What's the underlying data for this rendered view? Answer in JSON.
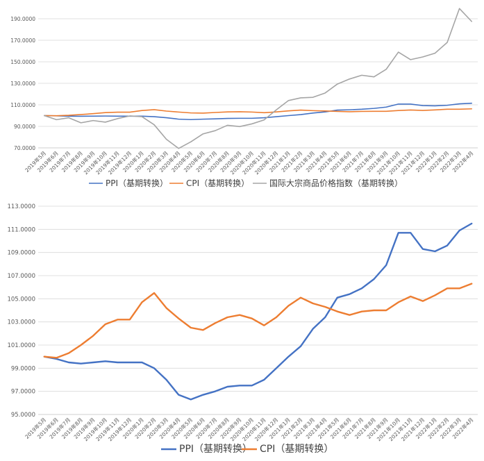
{
  "colors": {
    "ppi": "#4472C4",
    "cpi": "#ED7D31",
    "commodity": "#A5A5A5",
    "grid": "#D9D9D9",
    "text": "#595959"
  },
  "categories": [
    "2019年5月",
    "2019年6月",
    "2019年7月",
    "2019年8月",
    "2019年9月",
    "2019年10月",
    "2019年11月",
    "2019年12月",
    "2020年1月",
    "2020年2月",
    "2020年3月",
    "2020年4月",
    "2020年5月",
    "2020年6月",
    "2020年7月",
    "2020年8月",
    "2020年9月",
    "2020年10月",
    "2020年11月",
    "2020年12月",
    "2021年1月",
    "2021年2月",
    "2021年3月",
    "2021年4月",
    "2021年5月",
    "2021年6月",
    "2021年7月",
    "2021年8月",
    "2021年9月",
    "2021年10月",
    "2021年11月",
    "2021年12月",
    "2022年1月",
    "2022年2月",
    "2022年3月",
    "2022年4月"
  ],
  "chart_data": [
    {
      "type": "line",
      "ylim": [
        70,
        190
      ],
      "yticks": [
        "70.0000",
        "90.0000",
        "110.0000",
        "130.0000",
        "150.0000",
        "170.0000",
        "190.0000"
      ],
      "ytick_values": [
        70,
        90,
        110,
        130,
        150,
        170,
        190
      ],
      "legend_position": "bottom",
      "series": [
        {
          "name": "PPI（基期转换）",
          "key": "ppi",
          "values": [
            100,
            99.8,
            99.5,
            99.4,
            99.5,
            99.6,
            99.5,
            99.5,
            99.5,
            99.0,
            98.0,
            96.7,
            96.3,
            96.7,
            97.0,
            97.4,
            97.5,
            97.5,
            98.0,
            99.0,
            100.0,
            100.9,
            102.4,
            103.4,
            105.1,
            105.4,
            105.9,
            106.7,
            107.9,
            110.7,
            110.7,
            109.3,
            109.1,
            109.6,
            110.9,
            111.5
          ]
        },
        {
          "name": "CPI（基期转换）",
          "key": "cpi",
          "values": [
            100,
            99.9,
            100.3,
            101.0,
            101.8,
            102.8,
            103.2,
            103.2,
            104.7,
            105.5,
            104.2,
            103.3,
            102.5,
            102.3,
            102.9,
            103.4,
            103.6,
            103.3,
            102.7,
            103.4,
            104.4,
            105.1,
            104.6,
            104.3,
            103.9,
            103.6,
            103.9,
            104.0,
            104.0,
            104.7,
            105.2,
            104.8,
            105.3,
            105.9,
            105.9,
            106.3
          ]
        },
        {
          "name": "国际大宗商品价格指数（基期转换）",
          "key": "commodity",
          "values": [
            100,
            96.2,
            98.0,
            93.3,
            95.4,
            93.9,
            97.2,
            99.7,
            99.0,
            91.5,
            78.0,
            69.5,
            75.6,
            83.0,
            86.0,
            91.0,
            89.8,
            92.3,
            96.0,
            105.3,
            114.0,
            116.5,
            117.0,
            121.0,
            129.3,
            134.0,
            137.5,
            136.0,
            143.0,
            159.0,
            152.0,
            154.5,
            158.0,
            168.0,
            199.5,
            187.5
          ]
        }
      ]
    },
    {
      "type": "line",
      "ylim": [
        95,
        113
      ],
      "yticks": [
        "95.0000",
        "97.0000",
        "99.0000",
        "101.0000",
        "103.0000",
        "105.0000",
        "107.0000",
        "109.0000",
        "111.0000",
        "113.0000"
      ],
      "ytick_values": [
        95,
        97,
        99,
        101,
        103,
        105,
        107,
        109,
        111,
        113
      ],
      "legend_position": "bottom",
      "series": [
        {
          "name": "PPI（基期转换）",
          "key": "ppi",
          "values": [
            100,
            99.8,
            99.5,
            99.4,
            99.5,
            99.6,
            99.5,
            99.5,
            99.5,
            99.0,
            98.0,
            96.7,
            96.3,
            96.7,
            97.0,
            97.4,
            97.5,
            97.5,
            98.0,
            99.0,
            100.0,
            100.9,
            102.4,
            103.4,
            105.1,
            105.4,
            105.9,
            106.7,
            107.9,
            110.7,
            110.7,
            109.3,
            109.1,
            109.6,
            110.9,
            111.5
          ]
        },
        {
          "name": "CPI（基期转换）",
          "key": "cpi",
          "values": [
            100,
            99.9,
            100.3,
            101.0,
            101.8,
            102.8,
            103.2,
            103.2,
            104.7,
            105.5,
            104.2,
            103.3,
            102.5,
            102.3,
            102.9,
            103.4,
            103.6,
            103.3,
            102.7,
            103.4,
            104.4,
            105.1,
            104.6,
            104.3,
            103.9,
            103.6,
            103.9,
            104.0,
            104.0,
            104.7,
            105.2,
            104.8,
            105.3,
            105.9,
            105.9,
            106.3
          ]
        }
      ]
    }
  ]
}
